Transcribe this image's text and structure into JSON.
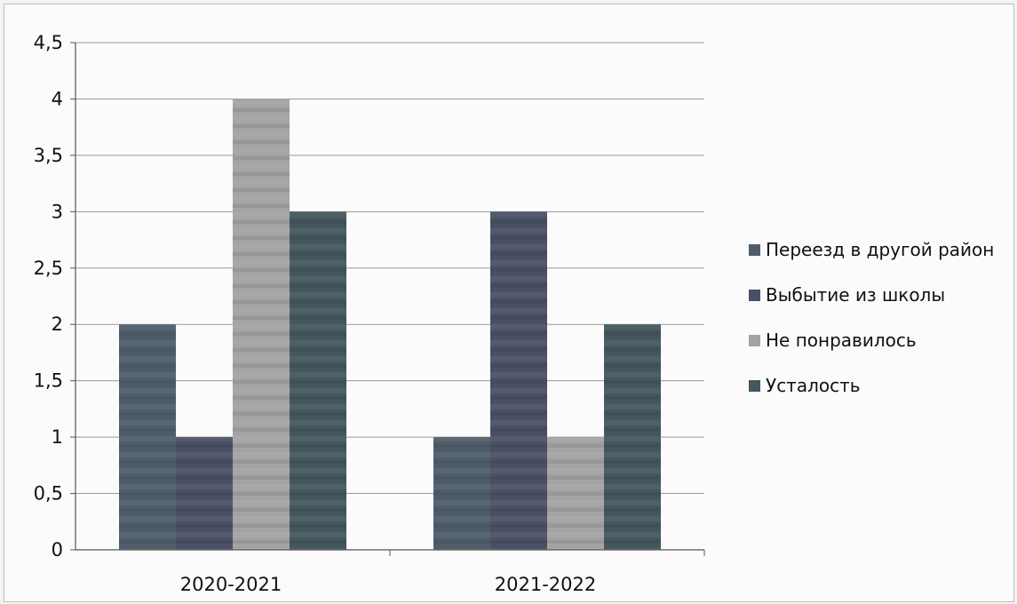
{
  "chart_data": {
    "type": "bar",
    "categories": [
      "2020-2021",
      "2021-2022"
    ],
    "series": [
      {
        "name": "Переезд в другой район",
        "values": [
          2,
          1
        ],
        "color": "#4f5d6a"
      },
      {
        "name": "Выбытие из школы",
        "values": [
          1,
          3
        ],
        "color": "#4a5064"
      },
      {
        "name": "Не понравилось",
        "values": [
          4,
          1
        ],
        "color": "#a3a3a3"
      },
      {
        "name": "Усталость",
        "values": [
          3,
          2
        ],
        "color": "#43575c"
      }
    ],
    "ylim": [
      0,
      4.5
    ],
    "yticks": [
      "0",
      "0,5",
      "1",
      "1,5",
      "2",
      "2,5",
      "3",
      "3,5",
      "4",
      "4,5"
    ],
    "grid": true,
    "legend_position": "right",
    "title": "",
    "xlabel": "",
    "ylabel": ""
  }
}
